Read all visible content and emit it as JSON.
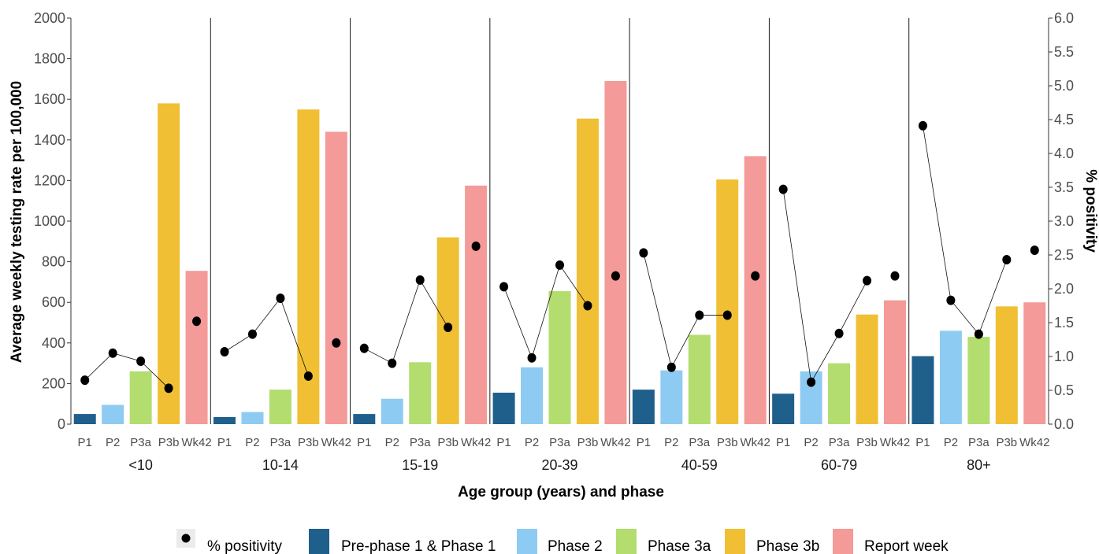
{
  "chart_data": {
    "type": "bar",
    "groups": [
      "<10",
      "10-14",
      "15-19",
      "20-39",
      "40-59",
      "60-79",
      "80+"
    ],
    "phases": [
      "P1",
      "P2",
      "P3a",
      "P3b",
      "Wk42"
    ],
    "xlabel": "Age group (years) and phase",
    "ylabel": "Average weekly testing rate per 100,000",
    "ylabel_right": "% positivity",
    "ylim": [
      0,
      2000
    ],
    "ylim_right": [
      0,
      6.0
    ],
    "yticks": [
      "0",
      "200",
      "400",
      "600",
      "800",
      "1000",
      "1200",
      "1400",
      "1600",
      "1800",
      "2000"
    ],
    "yticks_right": [
      "0.0",
      "0.5",
      "1.0",
      "1.5",
      "2.0",
      "2.5",
      "3.0",
      "3.5",
      "4.0",
      "4.5",
      "5.0",
      "5.5",
      "6.0"
    ],
    "grid": false,
    "legend_position": "bottom",
    "series": [
      {
        "name": "Pre-phase 1 & Phase 1",
        "color": "#1f5f8b",
        "values": [
          50,
          35,
          50,
          155,
          170,
          150,
          335
        ]
      },
      {
        "name": "Phase 2",
        "color": "#8ecbf2",
        "values": [
          95,
          60,
          125,
          280,
          265,
          260,
          460
        ]
      },
      {
        "name": "Phase 3a",
        "color": "#b3dd6f",
        "values": [
          260,
          170,
          305,
          655,
          440,
          300,
          430
        ]
      },
      {
        "name": "Phase 3b",
        "color": "#f0bf33",
        "values": [
          1580,
          1550,
          920,
          1505,
          1205,
          540,
          580
        ]
      },
      {
        "name": "Report week",
        "color": "#f49a98",
        "values": [
          755,
          1440,
          1175,
          1690,
          1320,
          610,
          600
        ]
      }
    ],
    "positivity": {
      "name": "% positivity",
      "values": [
        [
          0.65,
          1.05,
          0.93,
          0.53,
          1.52
        ],
        [
          1.07,
          1.33,
          1.86,
          0.71,
          1.2
        ],
        [
          1.12,
          0.9,
          2.13,
          1.43,
          2.63
        ],
        [
          2.03,
          0.98,
          2.35,
          1.75,
          2.19
        ],
        [
          2.53,
          0.84,
          1.61,
          1.61,
          2.19
        ],
        [
          3.47,
          0.62,
          1.34,
          2.12,
          2.19
        ],
        [
          4.41,
          1.83,
          1.33,
          2.43,
          2.57
        ]
      ]
    }
  }
}
